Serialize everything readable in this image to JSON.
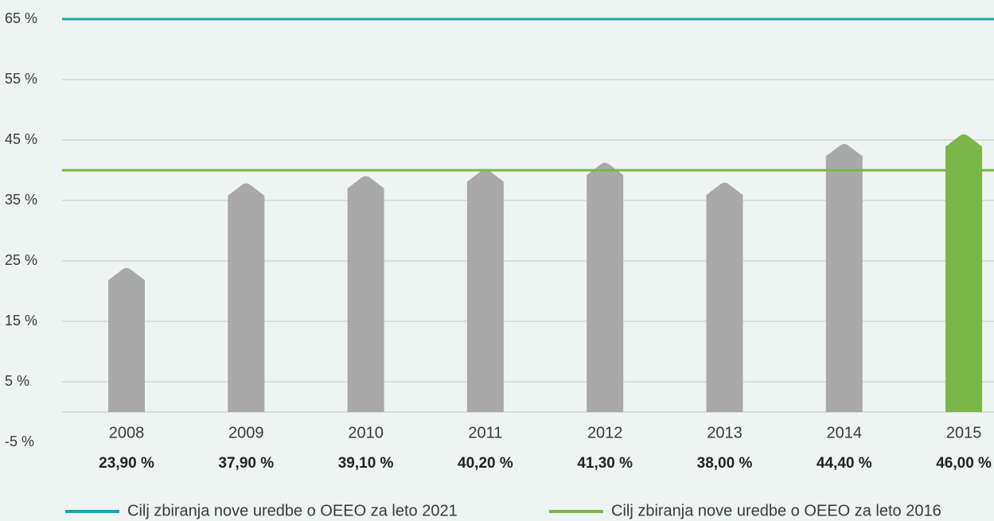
{
  "chart_data": {
    "type": "bar",
    "categories": [
      "2008",
      "2009",
      "2010",
      "2011",
      "2012",
      "2013",
      "2014",
      "2015"
    ],
    "values": [
      23.9,
      37.9,
      39.1,
      40.2,
      41.3,
      38.0,
      44.4,
      46.0
    ],
    "value_labels": [
      "23,90 %",
      "37,90 %",
      "39,10 %",
      "40,20 %",
      "41,30 %",
      "38,00 %",
      "44,40 %",
      "46,00 %"
    ],
    "colors": [
      "#a9a9a9",
      "#a9a9a9",
      "#a9a9a9",
      "#a9a9a9",
      "#a9a9a9",
      "#a9a9a9",
      "#a9a9a9",
      "#7ab648"
    ],
    "ylim": [
      -5,
      65
    ],
    "yticks": [
      {
        "value": -5,
        "label": "-5 %"
      },
      {
        "value": 5,
        "label": "5 %"
      },
      {
        "value": 15,
        "label": "15 %"
      },
      {
        "value": 25,
        "label": "25 %"
      },
      {
        "value": 35,
        "label": "35 %"
      },
      {
        "value": 45,
        "label": "45 %"
      },
      {
        "value": 55,
        "label": "55 %"
      },
      {
        "value": 65,
        "label": "65 %"
      }
    ],
    "grid": true,
    "reference_lines": [
      {
        "value": 65,
        "color": "#1ba6a8",
        "label": "Cilj zbiranja nove uredbe o OEEO za leto 2021"
      },
      {
        "value": 40,
        "color": "#7ab648",
        "label": "Cilj zbiranja nove uredbe o OEEO za leto 2016"
      }
    ]
  }
}
